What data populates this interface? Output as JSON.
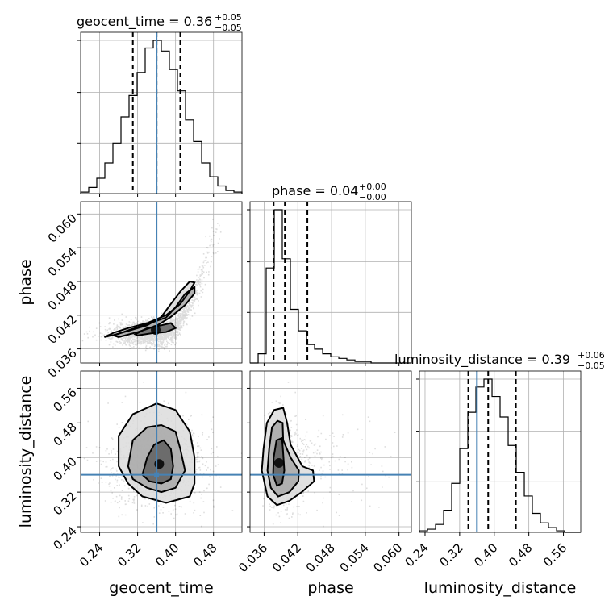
{
  "chart_data": {
    "type": "corner",
    "parameters": [
      "geocent_time",
      "phase",
      "luminosity_distance"
    ],
    "axis_labels": {
      "geocent_time": "geocent_time",
      "phase": "phase",
      "luminosity_distance": "luminosity_distance"
    },
    "titles": {
      "geocent_time": {
        "text": "geocent_time = 0.36",
        "plus": "+0.05",
        "minus": "−0.05"
      },
      "phase": {
        "text": "phase = 0.04",
        "plus": "+0.00",
        "minus": "−0.00"
      },
      "luminosity_distance": {
        "text": "luminosity_distance = 0.39",
        "plus": "+0.06",
        "minus": "−0.05"
      }
    },
    "ranges": {
      "geocent_time": [
        0.2,
        0.54
      ],
      "phase": [
        0.0335,
        0.0622
      ],
      "luminosity_distance": [
        0.227,
        0.6
      ]
    },
    "ticks": {
      "geocent_time": [
        0.24,
        0.32,
        0.4,
        0.48
      ],
      "phase": [
        0.036,
        0.042,
        0.048,
        0.054,
        0.06
      ],
      "luminosity_distance": [
        0.24,
        0.32,
        0.4,
        0.48,
        0.56
      ]
    },
    "tick_labels": {
      "geocent_time": [
        "0.24",
        "0.32",
        "0.40",
        "0.48"
      ],
      "phase": [
        "0.036",
        "0.042",
        "0.048",
        "0.054",
        "0.060"
      ],
      "luminosity_distance": [
        "0.24",
        "0.32",
        "0.40",
        "0.48",
        "0.56"
      ]
    },
    "truths": {
      "geocent_time": 0.36,
      "phase": null,
      "luminosity_distance": 0.36
    },
    "quantiles": {
      "geocent_time": [
        0.31,
        0.36,
        0.41
      ],
      "phase": [
        0.0377,
        0.0397,
        0.0437
      ],
      "luminosity_distance": [
        0.34,
        0.386,
        0.45
      ]
    },
    "histograms": {
      "geocent_time": {
        "edges": [
          0.2,
          0.217,
          0.234,
          0.251,
          0.268,
          0.285,
          0.302,
          0.319,
          0.336,
          0.353,
          0.37,
          0.387,
          0.404,
          0.421,
          0.438,
          0.455,
          0.472,
          0.489,
          0.506,
          0.523,
          0.54
        ],
        "counts": [
          1,
          4,
          10,
          20,
          33,
          50,
          64,
          79,
          95,
          100,
          93,
          81,
          67,
          48,
          34,
          20,
          11,
          5,
          2,
          1
        ]
      },
      "phase": {
        "edges": [
          0.0335,
          0.03494,
          0.03637,
          0.03781,
          0.03924,
          0.04068,
          0.04211,
          0.04355,
          0.04498,
          0.04642,
          0.04785,
          0.04929,
          0.05072,
          0.05216,
          0.05359,
          0.05503,
          0.05646,
          0.0579,
          0.05933,
          0.06077,
          0.0622
        ],
        "counts": [
          0,
          6,
          62,
          100,
          68,
          35,
          21,
          12,
          9,
          6,
          4,
          3,
          2,
          1,
          1,
          0,
          0,
          0,
          0,
          0
        ]
      },
      "luminosity_distance": {
        "edges": [
          0.227,
          0.2457,
          0.2643,
          0.283,
          0.3016,
          0.3203,
          0.3389,
          0.3576,
          0.3762,
          0.3949,
          0.4135,
          0.4322,
          0.4508,
          0.4695,
          0.4881,
          0.5068,
          0.5254,
          0.5441,
          0.5627,
          0.5814,
          0.6
        ],
        "counts": [
          1,
          2,
          5,
          14,
          31,
          53,
          76,
          92,
          97,
          86,
          73,
          55,
          38,
          23,
          12,
          6,
          3,
          1,
          0,
          0
        ]
      }
    },
    "scatter_2d": [
      {
        "x": "geocent_time",
        "y": "phase",
        "contours": [
          [
            [
              0.25,
              0.0381
            ],
            [
              0.27,
              0.0389
            ],
            [
              0.3,
              0.0397
            ],
            [
              0.34,
              0.0406
            ],
            [
              0.38,
              0.042
            ],
            [
              0.41,
              0.044
            ],
            [
              0.43,
              0.0463
            ],
            [
              0.44,
              0.0478
            ],
            [
              0.43,
              0.048
            ],
            [
              0.41,
              0.0462
            ],
            [
              0.39,
              0.044
            ],
            [
              0.37,
              0.0417
            ],
            [
              0.34,
              0.0402
            ],
            [
              0.3,
              0.0392
            ],
            [
              0.27,
              0.0385
            ]
          ],
          [
            [
              0.27,
              0.0384
            ],
            [
              0.3,
              0.0393
            ],
            [
              0.34,
              0.0404
            ],
            [
              0.38,
              0.0416
            ],
            [
              0.4,
              0.0434
            ],
            [
              0.42,
              0.0458
            ],
            [
              0.44,
              0.047
            ],
            [
              0.44,
              0.0459
            ],
            [
              0.42,
              0.0438
            ],
            [
              0.39,
              0.0417
            ],
            [
              0.36,
              0.0401
            ],
            [
              0.32,
              0.039
            ],
            [
              0.28,
              0.0381
            ]
          ],
          [
            [
              0.315,
              0.0386
            ],
            [
              0.34,
              0.0397
            ],
            [
              0.37,
              0.0402
            ],
            [
              0.39,
              0.0406
            ],
            [
              0.4,
              0.0397
            ],
            [
              0.38,
              0.039
            ],
            [
              0.35,
              0.0388
            ],
            [
              0.32,
              0.0384
            ]
          ]
        ]
      },
      {
        "x": "geocent_time",
        "y": "luminosity_distance",
        "contours": [
          [
            [
              0.28,
              0.38
            ],
            [
              0.28,
              0.45
            ],
            [
              0.31,
              0.5
            ],
            [
              0.36,
              0.525
            ],
            [
              0.4,
              0.51
            ],
            [
              0.43,
              0.46
            ],
            [
              0.44,
              0.4
            ],
            [
              0.44,
              0.34
            ],
            [
              0.43,
              0.31
            ],
            [
              0.38,
              0.295
            ],
            [
              0.33,
              0.31
            ],
            [
              0.3,
              0.34
            ]
          ],
          [
            [
              0.3,
              0.38
            ],
            [
              0.31,
              0.44
            ],
            [
              0.34,
              0.47
            ],
            [
              0.37,
              0.475
            ],
            [
              0.4,
              0.46
            ],
            [
              0.41,
              0.42
            ],
            [
              0.42,
              0.37
            ],
            [
              0.4,
              0.33
            ],
            [
              0.37,
              0.32
            ],
            [
              0.34,
              0.33
            ],
            [
              0.31,
              0.35
            ]
          ],
          [
            [
              0.33,
              0.36
            ],
            [
              0.34,
              0.4
            ],
            [
              0.355,
              0.43
            ],
            [
              0.375,
              0.44
            ],
            [
              0.39,
              0.42
            ],
            [
              0.395,
              0.38
            ],
            [
              0.39,
              0.35
            ],
            [
              0.37,
              0.34
            ],
            [
              0.345,
              0.345
            ]
          ]
        ]
      },
      {
        "x": "phase",
        "y": "luminosity_distance",
        "contours": [
          [
            [
              0.0356,
              0.37
            ],
            [
              0.0359,
              0.42
            ],
            [
              0.0365,
              0.48
            ],
            [
              0.0378,
              0.51
            ],
            [
              0.0394,
              0.515
            ],
            [
              0.0401,
              0.48
            ],
            [
              0.0407,
              0.43
            ],
            [
              0.0428,
              0.38
            ],
            [
              0.0447,
              0.37
            ],
            [
              0.0449,
              0.345
            ],
            [
              0.0427,
              0.32
            ],
            [
              0.0405,
              0.3
            ],
            [
              0.0383,
              0.29
            ],
            [
              0.0366,
              0.31
            ]
          ],
          [
            [
              0.0366,
              0.37
            ],
            [
              0.0369,
              0.42
            ],
            [
              0.0374,
              0.47
            ],
            [
              0.0384,
              0.485
            ],
            [
              0.0393,
              0.48
            ],
            [
              0.0394,
              0.44
            ],
            [
              0.0407,
              0.4
            ],
            [
              0.0422,
              0.37
            ],
            [
              0.0421,
              0.345
            ],
            [
              0.0405,
              0.32
            ],
            [
              0.0385,
              0.31
            ],
            [
              0.0372,
              0.33
            ]
          ],
          [
            [
              0.0376,
              0.36
            ],
            [
              0.0377,
              0.4
            ],
            [
              0.0382,
              0.44
            ],
            [
              0.0392,
              0.445
            ],
            [
              0.0394,
              0.41
            ],
            [
              0.0396,
              0.37
            ],
            [
              0.0392,
              0.34
            ],
            [
              0.0383,
              0.335
            ]
          ]
        ]
      }
    ]
  }
}
